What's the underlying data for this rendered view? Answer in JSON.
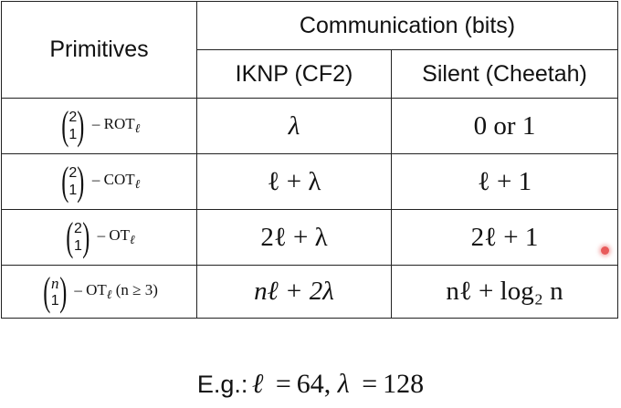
{
  "table": {
    "header": {
      "primitives": "Primitives",
      "communication": "Communication (bits)",
      "col_iknp": "IKNP (CF2)",
      "col_silent": "Silent (Cheetah)"
    },
    "rows": [
      {
        "binom_top": "2",
        "binom_bottom": "1",
        "name": "ROT",
        "sub": "ℓ",
        "suffix": "",
        "iknp": "λ",
        "silent": "0 or 1"
      },
      {
        "binom_top": "2",
        "binom_bottom": "1",
        "name": "COT",
        "sub": "ℓ",
        "suffix": "",
        "iknp": "ℓ + λ",
        "silent": "ℓ + 1"
      },
      {
        "binom_top": "2",
        "binom_bottom": "1",
        "name": "OT",
        "sub": "ℓ",
        "suffix": "",
        "iknp": "2ℓ + λ",
        "silent": "2ℓ + 1"
      },
      {
        "binom_top": "n",
        "binom_bottom": "1",
        "name": "OT",
        "sub": "ℓ",
        "suffix": "(n ≥ 3)",
        "iknp": "nℓ + 2λ",
        "silent": "nℓ + log₂ n"
      }
    ]
  },
  "example": {
    "label": "E.g.:",
    "ell": "ℓ",
    "ell_value": "64",
    "lambda": "λ",
    "lambda_value": "128"
  },
  "colors": {
    "border": "#222222",
    "text": "#111111",
    "laser_dot": "#e85a5a"
  }
}
